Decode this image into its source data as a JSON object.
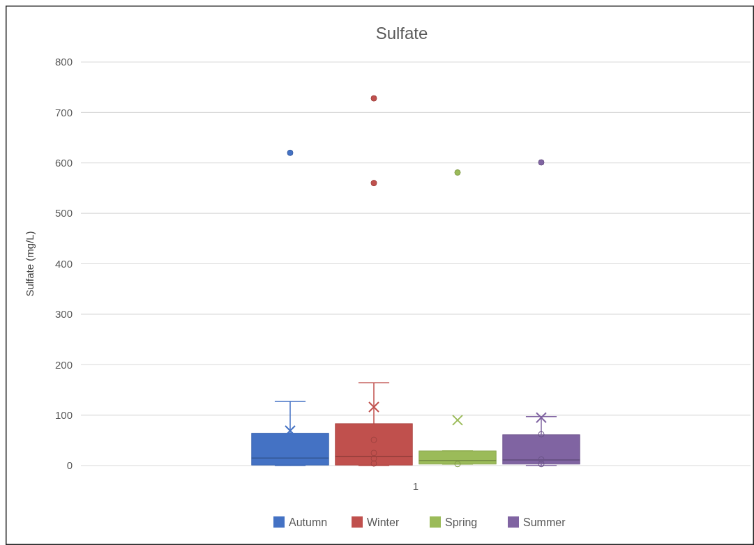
{
  "chart_data": {
    "type": "box",
    "title": "Sulfate",
    "ylabel": "Sulfate (mg/L)",
    "categories": [
      "1"
    ],
    "ylim": [
      0,
      800
    ],
    "yticks": [
      0,
      100,
      200,
      300,
      400,
      500,
      600,
      700,
      800
    ],
    "grid": "y",
    "legend": "bottom",
    "series": [
      {
        "name": "Autumn",
        "color": "#4472c4",
        "boxes": [
          {
            "low": 0,
            "q1": 1,
            "median": 15,
            "q3": 64,
            "high": 127,
            "mean": 69,
            "outliers": [
              620
            ]
          }
        ]
      },
      {
        "name": "Winter",
        "color": "#c0504d",
        "boxes": [
          {
            "low": 0,
            "q1": 1,
            "median": 18,
            "q3": 83,
            "high": 164,
            "mean": 116,
            "outliers": [
              4,
              14,
              25,
              51,
              560,
              728
            ]
          }
        ]
      },
      {
        "name": "Spring",
        "color": "#9bbb59",
        "boxes": [
          {
            "low": 3,
            "q1": 3,
            "median": 10,
            "q3": 29,
            "high": 29,
            "mean": 90,
            "outliers": [
              3,
              581
            ]
          }
        ]
      },
      {
        "name": "Summer",
        "color": "#8064a2",
        "boxes": [
          {
            "low": 0,
            "q1": 3,
            "median": 11,
            "q3": 61,
            "high": 97,
            "mean": 95,
            "outliers": [
              3,
              12,
              62,
              601
            ]
          }
        ]
      }
    ]
  }
}
